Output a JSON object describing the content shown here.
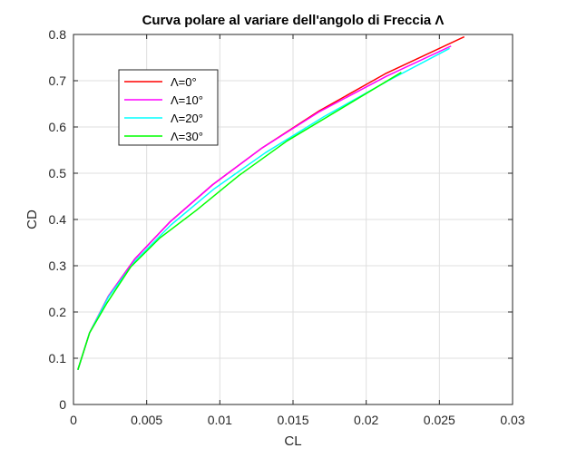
{
  "chart_data": {
    "type": "line",
    "title": "Curva polare al variare dell'angolo di Freccia Λ",
    "xlabel": "CL",
    "ylabel": "CD",
    "xlim": [
      0,
      0.03
    ],
    "ylim": [
      0,
      0.8
    ],
    "x_ticks": [
      0,
      0.005,
      0.01,
      0.015,
      0.02,
      0.025,
      0.03
    ],
    "x_tick_labels": [
      "0",
      "0.005",
      "0.01",
      "0.015",
      "0.02",
      "0.025",
      "0.03"
    ],
    "y_ticks": [
      0,
      0.1,
      0.2,
      0.3,
      0.4,
      0.5,
      0.6,
      0.7,
      0.8
    ],
    "y_tick_labels": [
      "0",
      "0.1",
      "0.2",
      "0.3",
      "0.4",
      "0.5",
      "0.6",
      "0.7",
      "0.8"
    ],
    "grid": true,
    "legend_position": "top-left",
    "series": [
      {
        "name": "Λ=0°",
        "color": "#ff0000",
        "x": [
          0.0003,
          0.0011,
          0.0024,
          0.0042,
          0.0066,
          0.0095,
          0.0129,
          0.0168,
          0.0213,
          0.0267
        ],
        "y": [
          0.075,
          0.155,
          0.235,
          0.315,
          0.395,
          0.475,
          0.555,
          0.635,
          0.715,
          0.795
        ]
      },
      {
        "name": "Λ=10°",
        "color": "#ff00ff",
        "x": [
          0.0003,
          0.0011,
          0.0024,
          0.0042,
          0.0066,
          0.0095,
          0.0129,
          0.0168,
          0.0214,
          0.0258
        ],
        "y": [
          0.075,
          0.155,
          0.235,
          0.315,
          0.395,
          0.475,
          0.555,
          0.633,
          0.71,
          0.775
        ]
      },
      {
        "name": "Λ=20°",
        "color": "#00ffff",
        "x": [
          0.0003,
          0.0011,
          0.0024,
          0.0042,
          0.00665,
          0.0096,
          0.0131,
          0.0171,
          0.0215,
          0.0257
        ],
        "y": [
          0.075,
          0.155,
          0.233,
          0.31,
          0.388,
          0.466,
          0.544,
          0.622,
          0.7,
          0.77
        ]
      },
      {
        "name": "Λ=30°",
        "color": "#00ff00",
        "x": [
          0.0003,
          0.0011,
          0.0023,
          0.0039,
          0.0059,
          0.0084,
          0.0113,
          0.0146,
          0.0183,
          0.0224
        ],
        "y": [
          0.075,
          0.155,
          0.22,
          0.297,
          0.36,
          0.42,
          0.495,
          0.57,
          0.64,
          0.718
        ]
      }
    ]
  }
}
